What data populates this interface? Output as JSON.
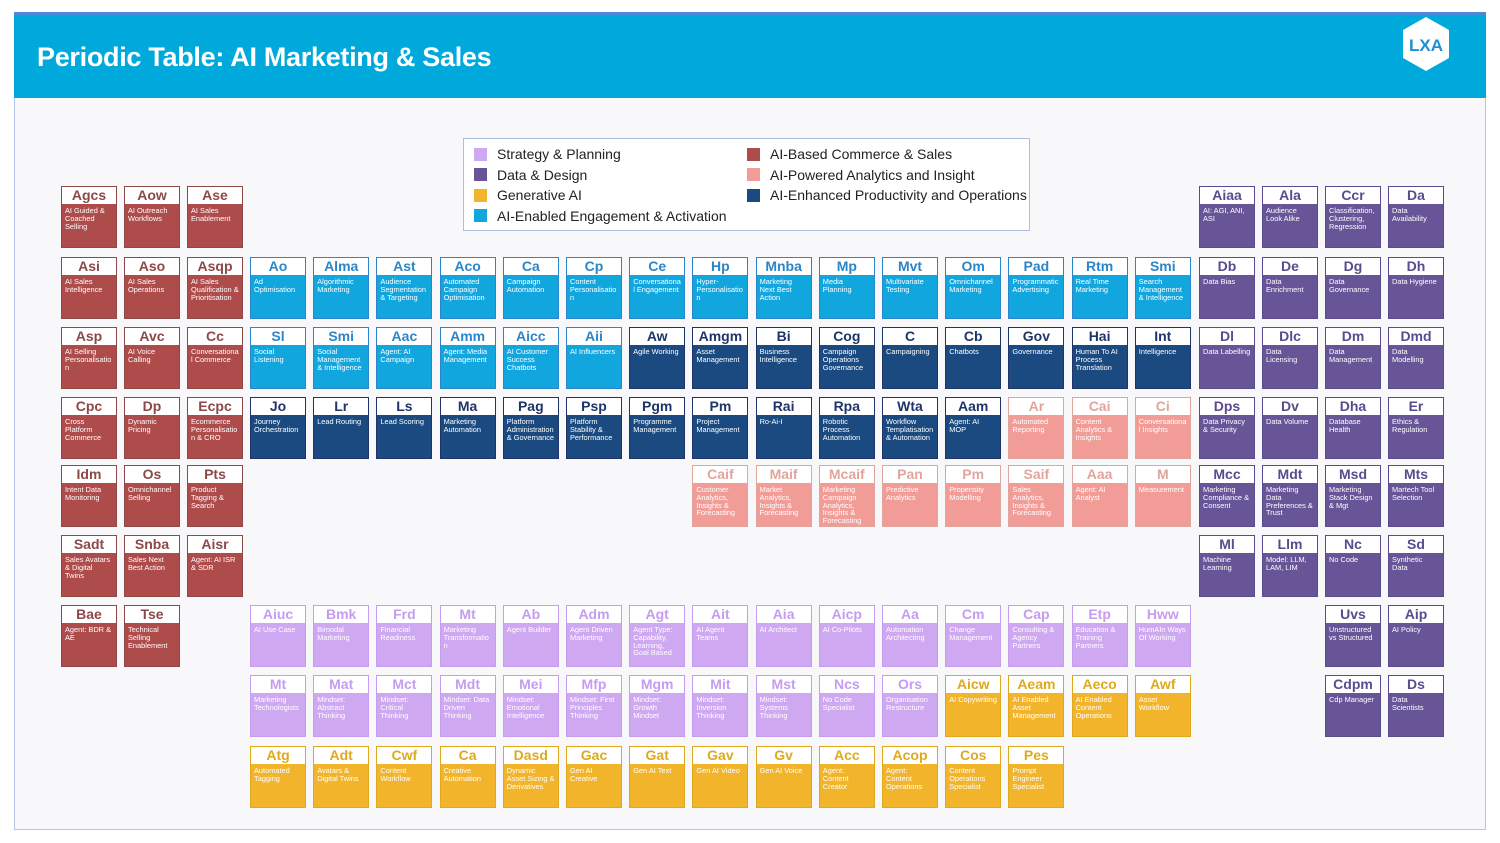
{
  "title": "Periodic Table: AI Marketing & Sales",
  "logo_text": "LXA",
  "categories": {
    "strategy": {
      "label": "Strategy & Planning",
      "color": "#cfa8f2",
      "title_color": "#c59cf0"
    },
    "data": {
      "label": "Data & Design",
      "color": "#675597",
      "title_color": "#5a4a8e"
    },
    "generative": {
      "label": "Generative AI",
      "color": "#f2b42b",
      "title_color": "#deaa1c"
    },
    "engagement": {
      "label": "AI-Enabled Engagement & Activation",
      "color": "#12a6df",
      "title_color": "#2a86c8"
    },
    "commerce": {
      "label": "AI-Based Commerce & Sales",
      "color": "#ae4b4b",
      "title_color": "#8d4848"
    },
    "analytics": {
      "label": "AI-Powered Analytics and Insight",
      "color": "#f29c98",
      "title_color": "#e0a59c"
    },
    "productivity": {
      "label": "AI-Enhanced Productivity and Operations",
      "color": "#1a4a80",
      "title_color": "#1f3569"
    }
  },
  "legend_order": [
    [
      "strategy",
      "data",
      "generative",
      "engagement"
    ],
    [
      "commerce",
      "analytics",
      "productivity"
    ]
  ],
  "rows": [
    {
      "left": [
        {
          "s": "Agcs",
          "n": "AI Guided & Coached Selling",
          "c": "commerce"
        },
        {
          "s": "Aow",
          "n": "AI Outreach Workflows",
          "c": "commerce"
        },
        {
          "s": "Ase",
          "n": "AI Sales Enablement",
          "c": "commerce"
        }
      ],
      "middle": [
        null,
        null,
        null,
        null,
        null,
        null,
        null,
        null,
        null,
        null,
        null,
        null,
        null,
        null,
        null
      ],
      "right": [
        {
          "s": "Aiaa",
          "n": "AI: AGI, ANI, ASI",
          "c": "data"
        },
        {
          "s": "Ala",
          "n": "Audience Look Alike",
          "c": "data"
        },
        {
          "s": "Ccr",
          "n": "Classification, Clustering, Regression",
          "c": "data"
        },
        {
          "s": "Da",
          "n": "Data Availability",
          "c": "data"
        }
      ]
    },
    {
      "left": [
        {
          "s": "Asi",
          "n": "AI Sales Intelligence",
          "c": "commerce"
        },
        {
          "s": "Aso",
          "n": "AI Sales Operations",
          "c": "commerce"
        },
        {
          "s": "Asqp",
          "n": "AI Sales Qualification & Prioritisation",
          "c": "commerce"
        }
      ],
      "middle": [
        {
          "s": "Ao",
          "n": "Ad Optimisation",
          "c": "engagement"
        },
        {
          "s": "Alma",
          "n": "Algorithmic Marketing",
          "c": "engagement"
        },
        {
          "s": "Ast",
          "n": "Audience Segmentation & Targeting",
          "c": "engagement"
        },
        {
          "s": "Aco",
          "n": "Automated Campaign Optimisation",
          "c": "engagement"
        },
        {
          "s": "Ca",
          "n": "Campaign Automation",
          "c": "engagement"
        },
        {
          "s": "Cp",
          "n": "Content Personalisation",
          "c": "engagement"
        },
        {
          "s": "Ce",
          "n": "Conversational Engagement",
          "c": "engagement"
        },
        {
          "s": "Hp",
          "n": "Hyper-Personalisation",
          "c": "engagement"
        },
        {
          "s": "Mnba",
          "n": "Marketing Next Best Action",
          "c": "engagement"
        },
        {
          "s": "Mp",
          "n": "Media Planning",
          "c": "engagement"
        },
        {
          "s": "Mvt",
          "n": "Multivariate Testing",
          "c": "engagement"
        },
        {
          "s": "Om",
          "n": "Omnichannel Marketing",
          "c": "engagement"
        },
        {
          "s": "Pad",
          "n": "Programmatic Advertising",
          "c": "engagement"
        },
        {
          "s": "Rtm",
          "n": "Real Time Marketing",
          "c": "engagement"
        },
        {
          "s": "Smi",
          "n": "Search Management & Intelligence",
          "c": "engagement"
        }
      ],
      "right": [
        {
          "s": "Db",
          "n": "Data Bias",
          "c": "data"
        },
        {
          "s": "De",
          "n": "Data Enrichment",
          "c": "data"
        },
        {
          "s": "Dg",
          "n": "Data Governance",
          "c": "data"
        },
        {
          "s": "Dh",
          "n": "Data Hygiene",
          "c": "data"
        }
      ]
    },
    {
      "left": [
        {
          "s": "Asp",
          "n": "AI Selling Personalisation",
          "c": "commerce"
        },
        {
          "s": "Avc",
          "n": "AI Voice Calling",
          "c": "commerce"
        },
        {
          "s": "Cc",
          "n": "Conversational Commerce",
          "c": "commerce"
        }
      ],
      "middle": [
        {
          "s": "Sl",
          "n": "Social Listening",
          "c": "engagement"
        },
        {
          "s": "Smi",
          "n": "Social Management & Intelligence",
          "c": "engagement"
        },
        {
          "s": "Aac",
          "n": "Agent: AI Campaign",
          "c": "engagement"
        },
        {
          "s": "Amm",
          "n": "Agent: Media Management",
          "c": "engagement"
        },
        {
          "s": "Aicc",
          "n": "AI Customer Success Chatbots",
          "c": "engagement"
        },
        {
          "s": "Aii",
          "n": "AI Influencers",
          "c": "engagement"
        },
        {
          "s": "Aw",
          "n": "Agile Working",
          "c": "productivity"
        },
        {
          "s": "Amgm",
          "n": "Asset Management",
          "c": "productivity"
        },
        {
          "s": "Bi",
          "n": "Business Intelligence",
          "c": "productivity"
        },
        {
          "s": "Cog",
          "n": "Campaign Operations Governance",
          "c": "productivity"
        },
        {
          "s": "C",
          "n": "Campaigning",
          "c": "productivity"
        },
        {
          "s": "Cb",
          "n": "Chatbots",
          "c": "productivity"
        },
        {
          "s": "Gov",
          "n": "Governance",
          "c": "productivity"
        },
        {
          "s": "Hai",
          "n": "Human To AI Process Translation",
          "c": "productivity"
        },
        {
          "s": "Int",
          "n": "Intelligence",
          "c": "productivity"
        }
      ],
      "right": [
        {
          "s": "Dl",
          "n": "Data Labelling",
          "c": "data"
        },
        {
          "s": "Dlc",
          "n": "Data Licensing",
          "c": "data"
        },
        {
          "s": "Dm",
          "n": "Data Management",
          "c": "data"
        },
        {
          "s": "Dmd",
          "n": "Data Modelling",
          "c": "data"
        }
      ]
    },
    {
      "left": [
        {
          "s": "Cpc",
          "n": "Cross Platform Commerce",
          "c": "commerce"
        },
        {
          "s": "Dp",
          "n": "Dynamic Pricing",
          "c": "commerce"
        },
        {
          "s": "Ecpc",
          "n": "Ecommerce Personalisation & CRO",
          "c": "commerce"
        }
      ],
      "middle": [
        {
          "s": "Jo",
          "n": "Journey Orchestration",
          "c": "productivity"
        },
        {
          "s": "Lr",
          "n": "Lead Routing",
          "c": "productivity"
        },
        {
          "s": "Ls",
          "n": "Lead Scoring",
          "c": "productivity"
        },
        {
          "s": "Ma",
          "n": "Marketing Automation",
          "c": "productivity"
        },
        {
          "s": "Pag",
          "n": "Platform Administration & Governance",
          "c": "productivity"
        },
        {
          "s": "Psp",
          "n": "Platform Stability & Performance",
          "c": "productivity"
        },
        {
          "s": "Pgm",
          "n": "Programme Management",
          "c": "productivity"
        },
        {
          "s": "Pm",
          "n": "Project Management",
          "c": "productivity"
        },
        {
          "s": "Rai",
          "n": "Ro-Ai-I",
          "c": "productivity"
        },
        {
          "s": "Rpa",
          "n": "Robotic Process Automation",
          "c": "productivity"
        },
        {
          "s": "Wta",
          "n": "Workflow Templatisation & Automation",
          "c": "productivity"
        },
        {
          "s": "Aam",
          "n": "Agent: AI MOP",
          "c": "productivity"
        },
        {
          "s": "Ar",
          "n": "Automated Reporting",
          "c": "analytics"
        },
        {
          "s": "Cai",
          "n": "Content Analytics & Insights",
          "c": "analytics"
        },
        {
          "s": "Ci",
          "n": "Conversational Insights",
          "c": "analytics"
        }
      ],
      "right": [
        {
          "s": "Dps",
          "n": "Data Privacy & Security",
          "c": "data"
        },
        {
          "s": "Dv",
          "n": "Data Volume",
          "c": "data"
        },
        {
          "s": "Dha",
          "n": "Database Health",
          "c": "data"
        },
        {
          "s": "Er",
          "n": "Ethics & Regulation",
          "c": "data"
        }
      ]
    },
    {
      "left": [
        {
          "s": "Idm",
          "n": "Intent Data Monitoring",
          "c": "commerce"
        },
        {
          "s": "Os",
          "n": "Omnichannel Selling",
          "c": "commerce"
        },
        {
          "s": "Pts",
          "n": "Product Tagging & Search",
          "c": "commerce"
        }
      ],
      "middle": [
        null,
        null,
        null,
        null,
        null,
        null,
        null,
        {
          "s": "Caif",
          "n": "Customer Analytics, Insights & Forecasting",
          "c": "analytics"
        },
        {
          "s": "Maif",
          "n": "Market Analytics, Insights & Forecasting",
          "c": "analytics"
        },
        {
          "s": "Mcaif",
          "n": "Marketing Campaign Analytics, Insights & Forecasting",
          "c": "analytics"
        },
        {
          "s": "Pan",
          "n": "Predictive Analytics",
          "c": "analytics"
        },
        {
          "s": "Pm",
          "n": "Propensity Modelling",
          "c": "analytics"
        },
        {
          "s": "Saif",
          "n": "Sales Analytics, Insights & Forecasting",
          "c": "analytics"
        },
        {
          "s": "Aaa",
          "n": "Agent: AI Analyst",
          "c": "analytics"
        },
        {
          "s": "M",
          "n": "Measurement",
          "c": "analytics"
        }
      ],
      "right": [
        {
          "s": "Mcc",
          "n": "Marketing Compliance & Consent",
          "c": "data"
        },
        {
          "s": "Mdt",
          "n": "Marketing Data Preferences & Trust",
          "c": "data"
        },
        {
          "s": "Msd",
          "n": "Marketing Stack Design & Mgt",
          "c": "data"
        },
        {
          "s": "Mts",
          "n": "Martech Tool Selection",
          "c": "data"
        }
      ]
    },
    {
      "left": [
        {
          "s": "Sadt",
          "n": "Sales Avatars & Digital Twins",
          "c": "commerce"
        },
        {
          "s": "Snba",
          "n": "Sales Next Best Action",
          "c": "commerce"
        },
        {
          "s": "Aisr",
          "n": "Agent: AI ISR & SDR",
          "c": "commerce"
        }
      ],
      "middle": [
        null,
        null,
        null,
        null,
        null,
        null,
        null,
        null,
        null,
        null,
        null,
        null,
        null,
        null,
        null
      ],
      "right": [
        {
          "s": "Ml",
          "n": "Machine Learning",
          "c": "data"
        },
        {
          "s": "Llm",
          "n": "Model: LLM, LAM, LIM",
          "c": "data"
        },
        {
          "s": "Nc",
          "n": "No Code",
          "c": "data"
        },
        {
          "s": "Sd",
          "n": "Synthetic Data",
          "c": "data"
        }
      ]
    },
    {
      "left": [
        {
          "s": "Bae",
          "n": "Agent: BDR & AE",
          "c": "commerce"
        },
        {
          "s": "Tse",
          "n": "Technical Selling Enablement",
          "c": "commerce"
        },
        null
      ],
      "middle": [
        {
          "s": "Aiuc",
          "n": "AI Use Case",
          "c": "strategy"
        },
        {
          "s": "Bmk",
          "n": "Bimodal Marketing",
          "c": "strategy"
        },
        {
          "s": "Frd",
          "n": "Financial Readiness",
          "c": "strategy"
        },
        {
          "s": "Mt",
          "n": "Marketing Transformation",
          "c": "strategy"
        },
        {
          "s": "Ab",
          "n": "Agent Builder",
          "c": "strategy"
        },
        {
          "s": "Adm",
          "n": "Agent Driven Marketing",
          "c": "strategy"
        },
        {
          "s": "Agt",
          "n": "Agent Type: Capability, Learning, Goal Based",
          "c": "strategy"
        },
        {
          "s": "Ait",
          "n": "AI Agent Teams",
          "c": "strategy"
        },
        {
          "s": "Aia",
          "n": "AI Architect",
          "c": "strategy"
        },
        {
          "s": "Aicp",
          "n": "AI Co-Pilots",
          "c": "strategy"
        },
        {
          "s": "Aa",
          "n": "Automation Architecting",
          "c": "strategy"
        },
        {
          "s": "Cm",
          "n": "Change Management",
          "c": "strategy"
        },
        {
          "s": "Cap",
          "n": "Consulting & Agency Partners",
          "c": "strategy"
        },
        {
          "s": "Etp",
          "n": "Education & Training Partners",
          "c": "strategy"
        },
        {
          "s": "Hww",
          "n": "HumAIn Ways Of Working",
          "c": "strategy"
        }
      ],
      "right": [
        null,
        null,
        {
          "s": "Uvs",
          "n": "Unstructured vs Structured",
          "c": "data"
        },
        {
          "s": "Aip",
          "n": "AI Policy",
          "c": "data"
        }
      ]
    },
    {
      "left": [
        null,
        null,
        null
      ],
      "middle": [
        {
          "s": "Mt",
          "n": "Marketing Technologists",
          "c": "strategy"
        },
        {
          "s": "Mat",
          "n": "Mindset: Abstract Thinking",
          "c": "strategy"
        },
        {
          "s": "Mct",
          "n": "Mindset: Critical Thinking",
          "c": "strategy"
        },
        {
          "s": "Mdt",
          "n": "Mindset: Data Driven Thinking",
          "c": "strategy"
        },
        {
          "s": "Mei",
          "n": "Mindset: Emotional Intelligence",
          "c": "strategy"
        },
        {
          "s": "Mfp",
          "n": "Mindset: First Principles Thinking",
          "c": "strategy"
        },
        {
          "s": "Mgm",
          "n": "Mindset: Growth Mindset",
          "c": "strategy"
        },
        {
          "s": "Mit",
          "n": "Mindset: Inversion Thinking",
          "c": "strategy"
        },
        {
          "s": "Mst",
          "n": "Mindset: Systems Thinking",
          "c": "strategy"
        },
        {
          "s": "Ncs",
          "n": "No Code Specialist",
          "c": "strategy"
        },
        {
          "s": "Ors",
          "n": "Organisation Restructure",
          "c": "strategy"
        },
        {
          "s": "Aicw",
          "n": "AI Copywriting",
          "c": "generative"
        },
        {
          "s": "Aeam",
          "n": "AI Enabled Asset Management",
          "c": "generative"
        },
        {
          "s": "Aeco",
          "n": "AI Enabled Content Operations",
          "c": "generative"
        },
        {
          "s": "Awf",
          "n": "Asset Workflow",
          "c": "generative"
        }
      ],
      "right": [
        null,
        null,
        {
          "s": "Cdpm",
          "n": "Cdp Manager",
          "c": "data"
        },
        {
          "s": "Ds",
          "n": "Data Scientists",
          "c": "data"
        }
      ]
    },
    {
      "left": [
        null,
        null,
        null
      ],
      "middle": [
        {
          "s": "Atg",
          "n": "Automated Tagging",
          "c": "generative"
        },
        {
          "s": "Adt",
          "n": "Avatars & Digital Twins",
          "c": "generative"
        },
        {
          "s": "Cwf",
          "n": "Content Workflow",
          "c": "generative"
        },
        {
          "s": "Ca",
          "n": "Creative Automation",
          "c": "generative"
        },
        {
          "s": "Dasd",
          "n": "Dynamic Asset Sizing & Derivatives",
          "c": "generative"
        },
        {
          "s": "Gac",
          "n": "Gen AI Creative",
          "c": "generative"
        },
        {
          "s": "Gat",
          "n": "Gen AI Text",
          "c": "generative"
        },
        {
          "s": "Gav",
          "n": "Gen AI Video",
          "c": "generative"
        },
        {
          "s": "Gv",
          "n": "Gen AI Voice",
          "c": "generative"
        },
        {
          "s": "Acc",
          "n": "Agent: Content Creator",
          "c": "generative"
        },
        {
          "s": "Acop",
          "n": "Agent: Content Operations",
          "c": "generative"
        },
        {
          "s": "Cos",
          "n": "Content Operations Specialist",
          "c": "generative"
        },
        {
          "s": "Pes",
          "n": "Prompt Engineer Specialist",
          "c": "generative"
        },
        null,
        null
      ],
      "right": [
        null,
        null,
        null,
        null
      ]
    }
  ]
}
